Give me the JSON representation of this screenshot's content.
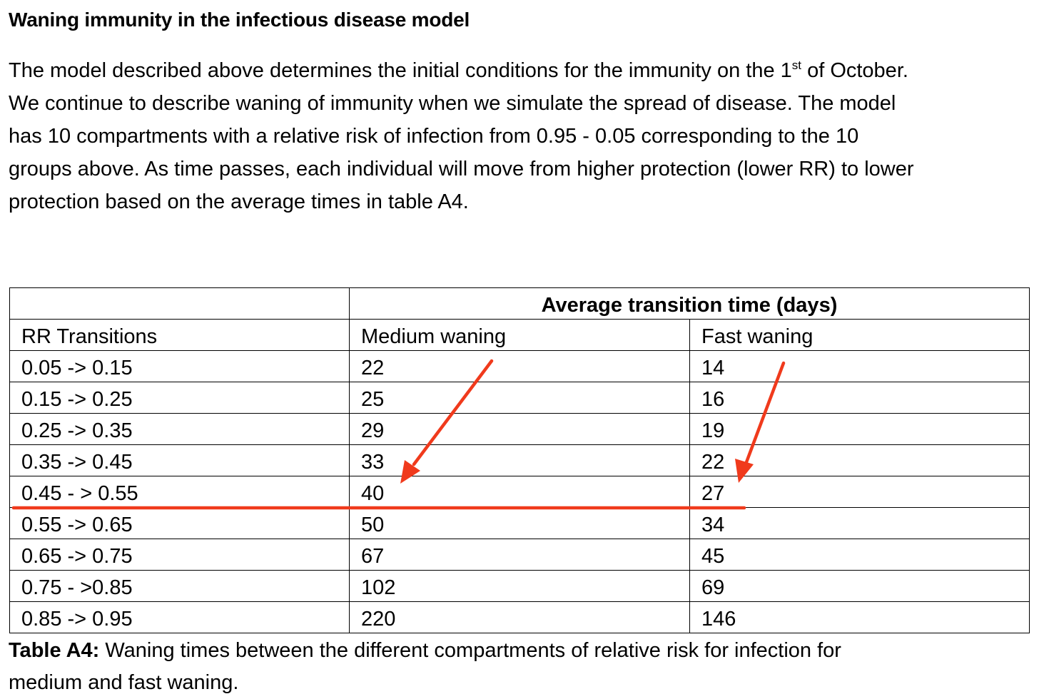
{
  "heading": "Waning immunity in the infectious disease model",
  "paragraph": {
    "line1_before": "The model described above determines the initial conditions for the immunity on the 1",
    "line1_sup": "st",
    "line1_after": " of October.",
    "line2": "We continue to describe waning of immunity when we simulate the spread of disease. The model",
    "line3": "has 10 compartments with a relative risk of infection from 0.95 - 0.05 corresponding to the 10",
    "line4": "groups above. As time passes, each individual will move from higher protection (lower RR) to lower",
    "line5": "protection based on the average times in table A4."
  },
  "table": {
    "group_header": "Average transition time (days)",
    "col_headers": [
      "RR Transitions",
      "Medium waning",
      "Fast waning"
    ],
    "rows": [
      [
        "0.05 -> 0.15",
        "22",
        "14"
      ],
      [
        "0.15 -> 0.25",
        "25",
        "16"
      ],
      [
        "0.25 -> 0.35",
        "29",
        "19"
      ],
      [
        "0.35 -> 0.45",
        "33",
        "22"
      ],
      [
        "0.45 - > 0.55",
        "40",
        "27"
      ],
      [
        "0.55 -> 0.65",
        "50",
        "34"
      ],
      [
        "0.65 -> 0.75",
        "67",
        "45"
      ],
      [
        "0.75 - >0.85",
        "102",
        "69"
      ],
      [
        "0.85 -> 0.95",
        "220",
        "146"
      ]
    ]
  },
  "caption": {
    "label": "Table A4:",
    "line1": " Waning times between the different compartments of relative risk for infection for",
    "line2": "medium and fast waning."
  },
  "annotation_color": "#f03a1c"
}
